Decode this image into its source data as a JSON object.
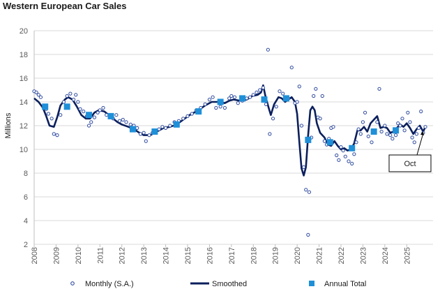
{
  "chart_data": {
    "type": "line",
    "title": "Western European Car Sales",
    "ylabel": "Millions",
    "xlabel": "",
    "ylim": [
      2,
      20
    ],
    "xlim": [
      2008,
      2026.2
    ],
    "y_ticks": [
      "2",
      "4",
      "6",
      "8",
      "10",
      "12",
      "14",
      "16",
      "18",
      "20"
    ],
    "x_ticks": [
      "2008",
      "2009",
      "2010",
      "2011",
      "2012",
      "2013",
      "2014",
      "2015",
      "2016",
      "2017",
      "2018",
      "2019",
      "2020",
      "2021",
      "2022",
      "2023",
      "2024",
      "2025"
    ],
    "grid": true,
    "legend_position": "bottom",
    "annotation": {
      "text": "Oct",
      "x": 2025.75,
      "y": 11.7
    },
    "colors": {
      "monthly": "#2E4A9E",
      "smoothed": "#0B1F5C",
      "annual": "#1F8FD8",
      "grid": "#D9D9D9"
    },
    "series": [
      {
        "name": "Monthly (S.A.)",
        "style": "scatter",
        "points": [
          [
            2008.0,
            14.9
          ],
          [
            2008.1,
            14.8
          ],
          [
            2008.2,
            14.6
          ],
          [
            2008.3,
            14.4
          ],
          [
            2008.45,
            13.7
          ],
          [
            2008.55,
            13.4
          ],
          [
            2008.65,
            13.0
          ],
          [
            2008.8,
            12.6
          ],
          [
            2008.9,
            11.3
          ],
          [
            2009.05,
            11.2
          ],
          [
            2009.2,
            12.9
          ],
          [
            2009.35,
            14.0
          ],
          [
            2009.5,
            14.5
          ],
          [
            2009.65,
            14.7
          ],
          [
            2009.8,
            14.2
          ],
          [
            2009.9,
            14.6
          ],
          [
            2010.0,
            14.0
          ],
          [
            2010.1,
            13.4
          ],
          [
            2010.25,
            13.2
          ],
          [
            2010.4,
            12.8
          ],
          [
            2010.5,
            12.0
          ],
          [
            2010.6,
            12.3
          ],
          [
            2010.75,
            12.7
          ],
          [
            2010.9,
            13.1
          ],
          [
            2011.0,
            13.3
          ],
          [
            2011.15,
            13.5
          ],
          [
            2011.3,
            12.9
          ],
          [
            2011.45,
            12.7
          ],
          [
            2011.6,
            12.6
          ],
          [
            2011.75,
            12.9
          ],
          [
            2011.9,
            12.4
          ],
          [
            2012.05,
            12.5
          ],
          [
            2012.2,
            12.3
          ],
          [
            2012.4,
            12.1
          ],
          [
            2012.55,
            12.0
          ],
          [
            2012.7,
            11.8
          ],
          [
            2012.85,
            11.3
          ],
          [
            2013.0,
            11.4
          ],
          [
            2013.1,
            10.7
          ],
          [
            2013.25,
            11.2
          ],
          [
            2013.4,
            11.4
          ],
          [
            2013.55,
            11.6
          ],
          [
            2013.7,
            11.7
          ],
          [
            2013.85,
            11.9
          ],
          [
            2014.0,
            11.8
          ],
          [
            2014.2,
            12.0
          ],
          [
            2014.4,
            12.3
          ],
          [
            2014.6,
            12.4
          ],
          [
            2014.8,
            12.6
          ],
          [
            2015.0,
            12.8
          ],
          [
            2015.2,
            13.0
          ],
          [
            2015.4,
            13.3
          ],
          [
            2015.6,
            13.5
          ],
          [
            2015.8,
            13.8
          ],
          [
            2016.0,
            14.2
          ],
          [
            2016.15,
            14.4
          ],
          [
            2016.3,
            13.5
          ],
          [
            2016.5,
            13.6
          ],
          [
            2016.7,
            13.5
          ],
          [
            2016.9,
            14.3
          ],
          [
            2017.0,
            14.5
          ],
          [
            2017.15,
            14.4
          ],
          [
            2017.3,
            13.9
          ],
          [
            2017.5,
            14.1
          ],
          [
            2017.7,
            14.3
          ],
          [
            2017.85,
            14.4
          ],
          [
            2018.0,
            14.6
          ],
          [
            2018.15,
            14.8
          ],
          [
            2018.3,
            15.0
          ],
          [
            2018.45,
            15.2
          ],
          [
            2018.58,
            13.8
          ],
          [
            2018.67,
            18.4
          ],
          [
            2018.75,
            11.3
          ],
          [
            2018.9,
            12.6
          ],
          [
            2019.05,
            13.6
          ],
          [
            2019.2,
            14.9
          ],
          [
            2019.35,
            14.7
          ],
          [
            2019.5,
            14.3
          ],
          [
            2019.6,
            14.3
          ],
          [
            2019.75,
            16.9
          ],
          [
            2019.9,
            13.9
          ],
          [
            2020.0,
            14.0
          ],
          [
            2020.1,
            15.3
          ],
          [
            2020.2,
            12.0
          ],
          [
            2020.3,
            8.5
          ],
          [
            2020.4,
            6.6
          ],
          [
            2020.5,
            2.8
          ],
          [
            2020.55,
            6.4
          ],
          [
            2020.65,
            11.0
          ],
          [
            2020.75,
            14.5
          ],
          [
            2020.85,
            15.1
          ],
          [
            2020.95,
            12.7
          ],
          [
            2021.05,
            12.6
          ],
          [
            2021.15,
            14.5
          ],
          [
            2021.25,
            10.7
          ],
          [
            2021.35,
            10.4
          ],
          [
            2021.45,
            10.9
          ],
          [
            2021.55,
            11.8
          ],
          [
            2021.65,
            11.9
          ],
          [
            2021.8,
            9.5
          ],
          [
            2021.9,
            9.1
          ],
          [
            2022.0,
            10.2
          ],
          [
            2022.1,
            9.9
          ],
          [
            2022.2,
            9.4
          ],
          [
            2022.35,
            9.0
          ],
          [
            2022.5,
            8.8
          ],
          [
            2022.6,
            9.6
          ],
          [
            2022.7,
            10.6
          ],
          [
            2022.8,
            11.7
          ],
          [
            2022.9,
            11.3
          ],
          [
            2023.0,
            12.3
          ],
          [
            2023.1,
            13.1
          ],
          [
            2023.25,
            11.1
          ],
          [
            2023.4,
            10.6
          ],
          [
            2023.5,
            11.5
          ],
          [
            2023.65,
            12.3
          ],
          [
            2023.75,
            15.1
          ],
          [
            2023.85,
            11.5
          ],
          [
            2024.0,
            12.0
          ],
          [
            2024.1,
            11.3
          ],
          [
            2024.25,
            11.2
          ],
          [
            2024.35,
            10.9
          ],
          [
            2024.5,
            11.2
          ],
          [
            2024.6,
            12.2
          ],
          [
            2024.7,
            12.0
          ],
          [
            2024.8,
            12.6
          ],
          [
            2024.9,
            11.6
          ],
          [
            2025.05,
            13.1
          ],
          [
            2025.15,
            12.3
          ],
          [
            2025.25,
            11.0
          ],
          [
            2025.35,
            10.6
          ],
          [
            2025.45,
            11.3
          ],
          [
            2025.55,
            11.8
          ],
          [
            2025.65,
            13.2
          ],
          [
            2025.75,
            11.4
          ],
          [
            2025.85,
            11.9
          ]
        ]
      },
      {
        "name": "Smoothed",
        "style": "line",
        "points": [
          [
            2008.0,
            14.3
          ],
          [
            2008.2,
            14.0
          ],
          [
            2008.4,
            13.5
          ],
          [
            2008.55,
            12.8
          ],
          [
            2008.7,
            12.0
          ],
          [
            2008.9,
            11.9
          ],
          [
            2009.05,
            12.7
          ],
          [
            2009.2,
            13.7
          ],
          [
            2009.4,
            14.2
          ],
          [
            2009.55,
            14.4
          ],
          [
            2009.75,
            14.2
          ],
          [
            2009.95,
            13.6
          ],
          [
            2010.15,
            12.9
          ],
          [
            2010.35,
            12.6
          ],
          [
            2010.55,
            12.6
          ],
          [
            2010.75,
            13.1
          ],
          [
            2010.95,
            13.3
          ],
          [
            2011.2,
            13.2
          ],
          [
            2011.4,
            12.9
          ],
          [
            2011.6,
            12.6
          ],
          [
            2011.8,
            12.3
          ],
          [
            2012.0,
            12.1
          ],
          [
            2012.3,
            11.9
          ],
          [
            2012.55,
            11.7
          ],
          [
            2012.8,
            11.4
          ],
          [
            2013.0,
            11.2
          ],
          [
            2013.3,
            11.2
          ],
          [
            2013.6,
            11.5
          ],
          [
            2013.9,
            11.8
          ],
          [
            2014.2,
            11.9
          ],
          [
            2014.5,
            12.1
          ],
          [
            2014.8,
            12.5
          ],
          [
            2015.1,
            12.9
          ],
          [
            2015.5,
            13.3
          ],
          [
            2015.8,
            13.7
          ],
          [
            2016.1,
            14.0
          ],
          [
            2016.4,
            14.0
          ],
          [
            2016.7,
            13.9
          ],
          [
            2016.9,
            14.1
          ],
          [
            2017.1,
            14.2
          ],
          [
            2017.4,
            14.1
          ],
          [
            2017.7,
            14.2
          ],
          [
            2017.95,
            14.5
          ],
          [
            2018.2,
            14.6
          ],
          [
            2018.35,
            14.8
          ],
          [
            2018.45,
            15.4
          ],
          [
            2018.55,
            14.5
          ],
          [
            2018.7,
            13.5
          ],
          [
            2018.8,
            12.9
          ],
          [
            2018.95,
            13.8
          ],
          [
            2019.15,
            14.4
          ],
          [
            2019.3,
            14.3
          ],
          [
            2019.45,
            14.0
          ],
          [
            2019.6,
            14.2
          ],
          [
            2019.75,
            14.4
          ],
          [
            2019.9,
            14.0
          ],
          [
            2020.0,
            13.0
          ],
          [
            2020.1,
            10.6
          ],
          [
            2020.2,
            8.4
          ],
          [
            2020.3,
            7.8
          ],
          [
            2020.4,
            8.5
          ],
          [
            2020.5,
            11.2
          ],
          [
            2020.6,
            13.3
          ],
          [
            2020.7,
            13.6
          ],
          [
            2020.8,
            13.3
          ],
          [
            2020.9,
            12.2
          ],
          [
            2021.05,
            11.4
          ],
          [
            2021.25,
            11.0
          ],
          [
            2021.4,
            10.4
          ],
          [
            2021.55,
            10.3
          ],
          [
            2021.7,
            10.7
          ],
          [
            2021.85,
            10.3
          ],
          [
            2022.0,
            10.0
          ],
          [
            2022.15,
            10.1
          ],
          [
            2022.3,
            9.9
          ],
          [
            2022.45,
            10.0
          ],
          [
            2022.6,
            10.5
          ],
          [
            2022.75,
            11.6
          ],
          [
            2022.9,
            11.6
          ],
          [
            2023.05,
            11.9
          ],
          [
            2023.2,
            11.5
          ],
          [
            2023.35,
            12.2
          ],
          [
            2023.5,
            12.5
          ],
          [
            2023.65,
            12.8
          ],
          [
            2023.8,
            11.8
          ],
          [
            2023.95,
            11.9
          ],
          [
            2024.1,
            11.8
          ],
          [
            2024.25,
            11.4
          ],
          [
            2024.4,
            11.5
          ],
          [
            2024.55,
            11.8
          ],
          [
            2024.7,
            12.1
          ],
          [
            2024.85,
            11.9
          ],
          [
            2025.0,
            12.2
          ],
          [
            2025.15,
            11.8
          ],
          [
            2025.3,
            11.3
          ],
          [
            2025.45,
            11.7
          ],
          [
            2025.6,
            12.0
          ],
          [
            2025.75,
            11.5
          ],
          [
            2025.85,
            11.9
          ]
        ]
      },
      {
        "name": "Annual Total",
        "style": "marker",
        "points": [
          [
            2008.5,
            13.6
          ],
          [
            2009.5,
            13.6
          ],
          [
            2010.5,
            12.9
          ],
          [
            2011.5,
            12.8
          ],
          [
            2012.5,
            11.7
          ],
          [
            2013.5,
            11.5
          ],
          [
            2014.5,
            12.1
          ],
          [
            2015.5,
            13.2
          ],
          [
            2016.5,
            14.0
          ],
          [
            2017.5,
            14.3
          ],
          [
            2018.5,
            14.2
          ],
          [
            2019.5,
            14.3
          ],
          [
            2020.5,
            10.8
          ],
          [
            2021.5,
            10.6
          ],
          [
            2022.5,
            10.1
          ],
          [
            2023.5,
            11.5
          ],
          [
            2024.5,
            11.6
          ]
        ]
      }
    ]
  }
}
